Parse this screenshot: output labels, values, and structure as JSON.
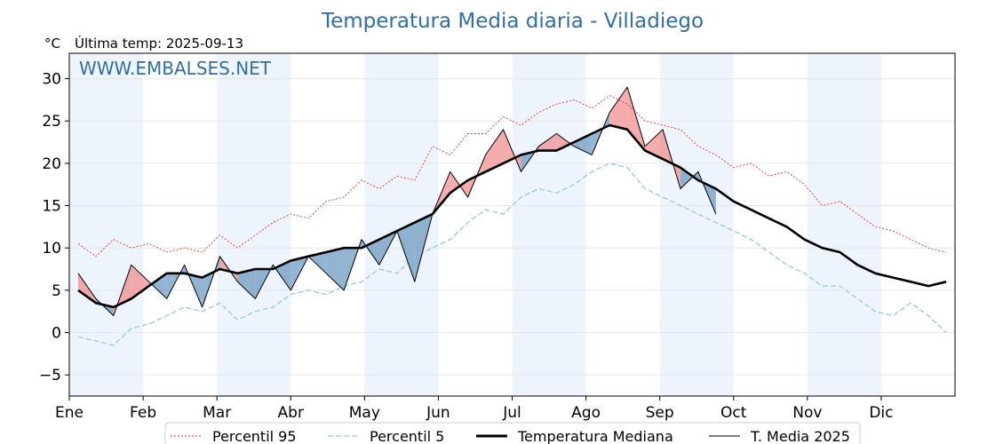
{
  "header": {
    "title": "Temperatura Media diaria - Villadiego",
    "unit": "°C",
    "last_temp": "Última temp: 2025-09-13",
    "watermark": "WWW.EMBALSES.NET"
  },
  "legend": {
    "p95": "Percentil 95",
    "p5": "Percentil 5",
    "median": "Temperatura Mediana",
    "current": "T. Media 2025"
  },
  "colors": {
    "title": "#2f6fa5",
    "p95": "#e8322e",
    "p5": "#8ec6da",
    "median": "#000000",
    "current": "#000000",
    "warm_fill": "#f08080",
    "cold_fill": "#5b8db8",
    "month_band": "#eef4fb"
  },
  "chart_data": {
    "type": "line",
    "x_unit": "month",
    "months": [
      "Ene",
      "Feb",
      "Mar",
      "Abr",
      "May",
      "Jun",
      "Jul",
      "Ago",
      "Sep",
      "Oct",
      "Nov",
      "Dic"
    ],
    "ylim": [
      -7.5,
      33
    ],
    "yticks": [
      -5,
      0,
      5,
      10,
      15,
      20,
      25,
      30
    ],
    "grid": true,
    "legend_position": "bottom",
    "series": [
      {
        "name": "Percentil 95",
        "style": "dotted-red",
        "values": [
          10.5,
          9,
          11,
          10,
          10.5,
          9.5,
          10,
          9.5,
          11.5,
          10,
          11.5,
          13,
          14,
          13.5,
          15.5,
          16,
          18,
          17,
          18.5,
          18,
          22,
          21,
          23.5,
          23.5,
          25.5,
          24.5,
          26,
          27,
          27.5,
          26.5,
          28,
          27,
          25,
          24.5,
          24,
          22,
          21,
          19.5,
          20,
          18.5,
          19,
          17.5,
          15,
          15.5,
          14,
          12.5,
          12,
          11,
          10,
          9.5
        ]
      },
      {
        "name": "Percentil 5",
        "style": "dashed-lightblue",
        "values": [
          -0.5,
          -1,
          -1.5,
          0.5,
          1,
          2,
          3,
          2.5,
          3.5,
          1.5,
          2.5,
          3,
          4.5,
          5,
          4.5,
          5.5,
          6,
          7.5,
          7,
          9,
          10,
          11,
          13,
          14.5,
          14,
          16,
          17,
          16.5,
          17.5,
          19,
          20,
          19.5,
          17,
          16,
          15,
          14,
          13,
          12,
          11,
          9.5,
          8,
          7,
          5.5,
          5.5,
          4,
          2.5,
          2,
          3.5,
          2,
          0
        ]
      },
      {
        "name": "Temperatura Mediana",
        "style": "thick-black",
        "values": [
          5,
          3.5,
          3,
          4,
          5.5,
          7,
          7,
          6.5,
          7.5,
          7,
          7.5,
          7.5,
          8.5,
          9,
          9.5,
          10,
          10,
          11,
          12,
          13,
          14,
          16.5,
          18,
          19,
          20,
          21,
          21.5,
          21.5,
          22.5,
          23.5,
          24.5,
          24,
          21.5,
          20.5,
          19.5,
          18,
          17,
          15.5,
          14.5,
          13.5,
          12.5,
          11,
          10,
          9.5,
          8,
          7,
          6.5,
          6,
          5.5,
          6
        ]
      },
      {
        "name": "T. Media 2025",
        "style": "thin-black",
        "values": [
          7,
          4,
          2,
          8,
          6,
          4,
          8,
          3,
          9,
          6,
          4,
          8,
          5,
          9,
          7,
          5,
          11,
          8,
          12,
          6,
          14,
          19,
          16,
          21,
          24,
          19,
          22,
          23.5,
          22,
          21,
          26,
          29,
          22,
          24,
          17,
          19,
          14,
          null,
          null,
          null,
          null,
          null,
          null,
          null,
          null,
          null,
          null,
          null,
          null,
          null
        ]
      }
    ]
  }
}
